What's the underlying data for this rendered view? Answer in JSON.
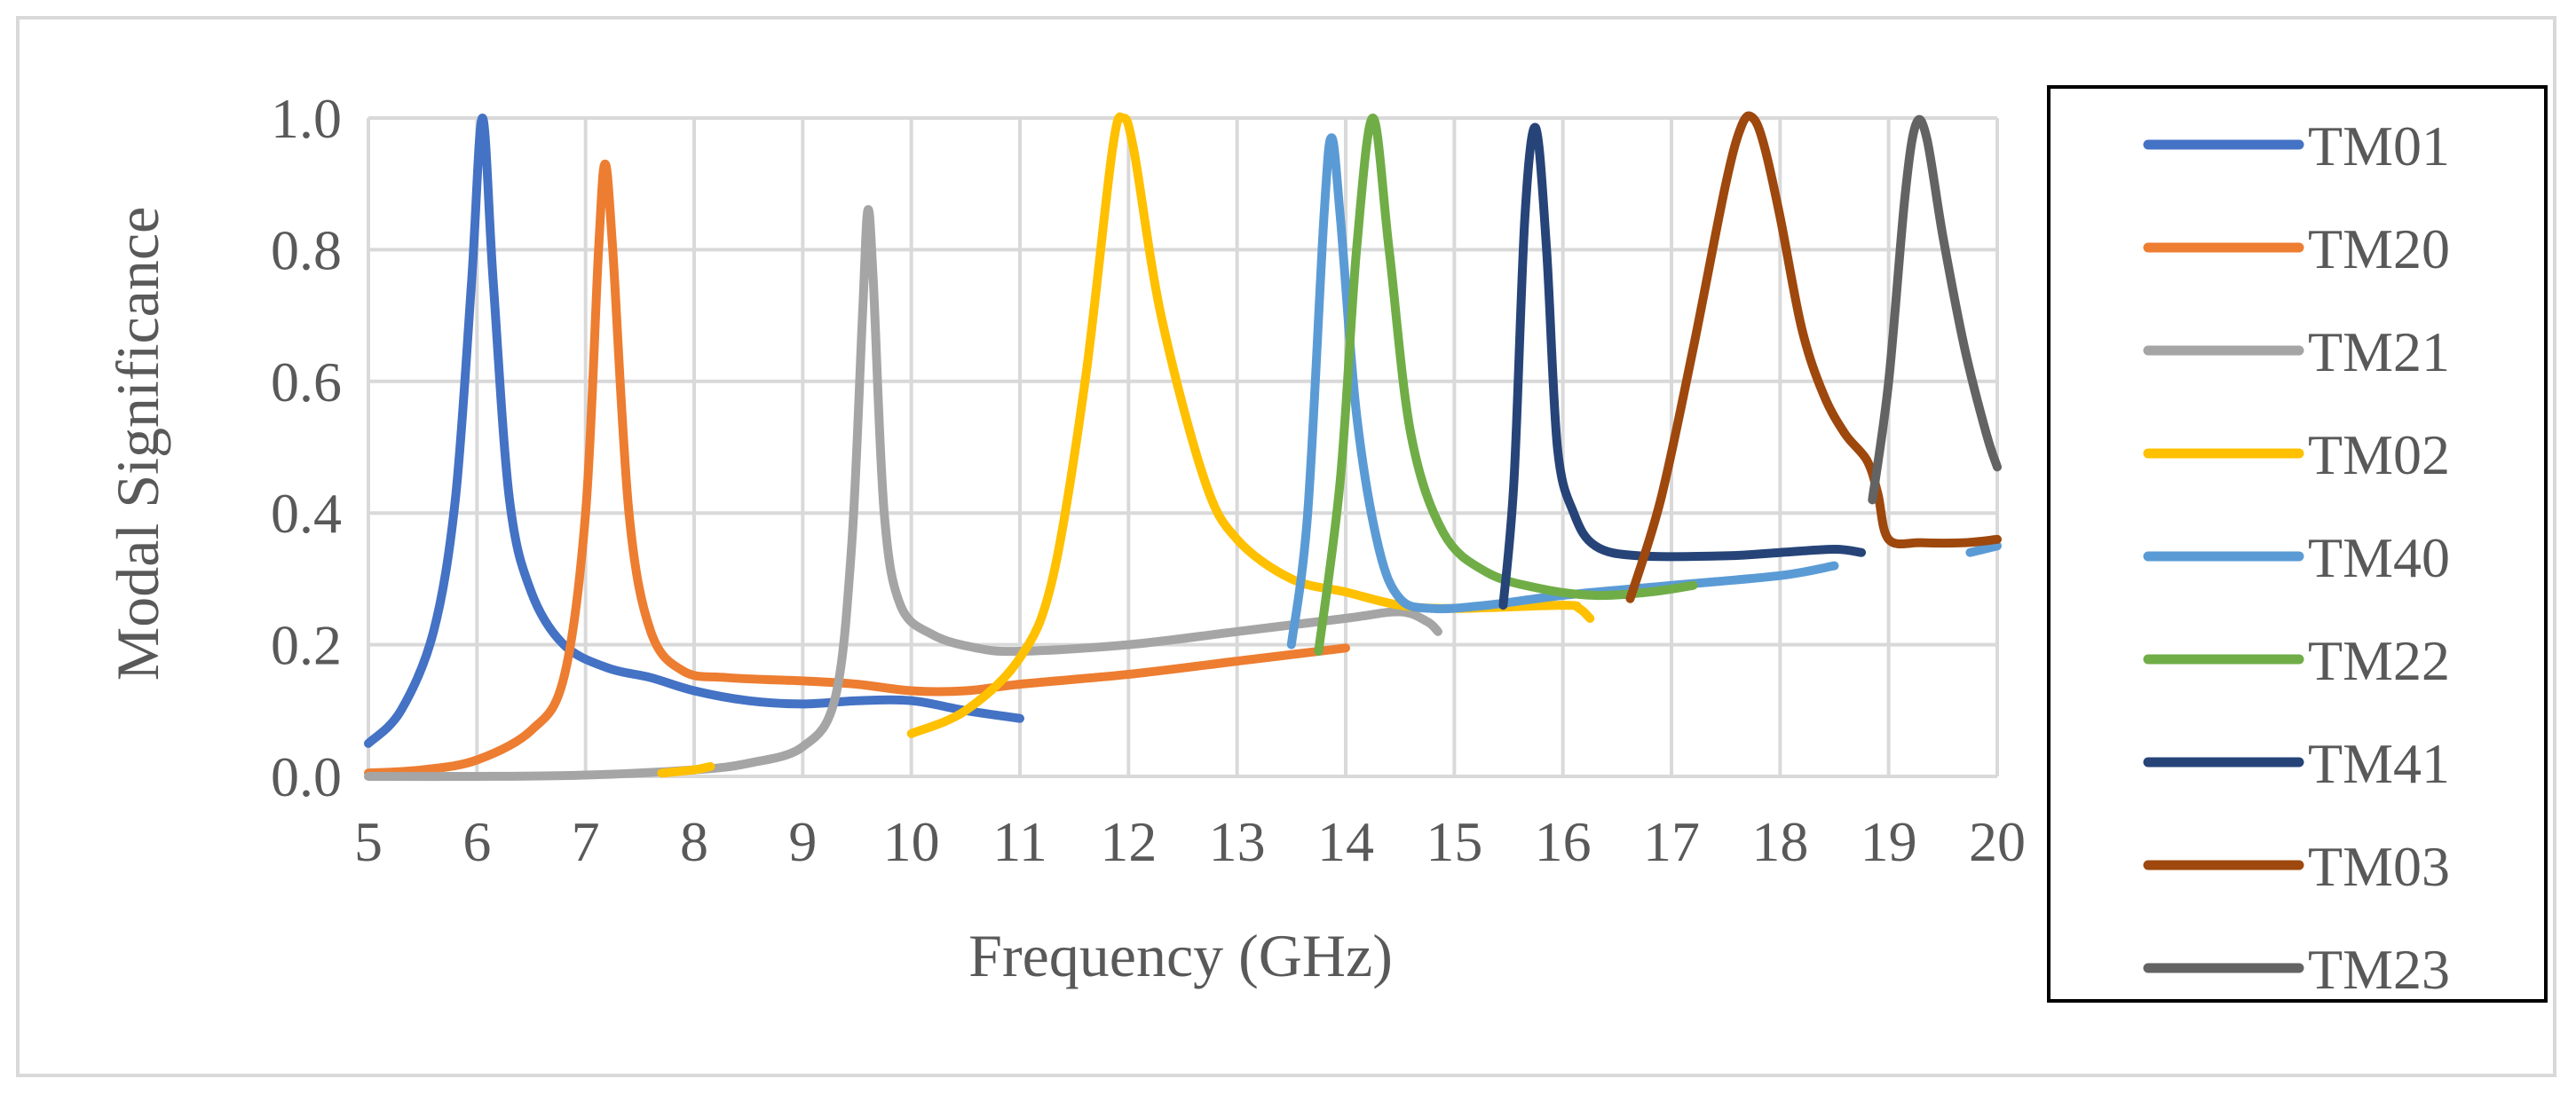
{
  "chart_data": {
    "type": "line",
    "title": "",
    "xlabel": "Frequency (GHz)",
    "ylabel": "Modal Significance",
    "xlim": [
      5,
      20
    ],
    "ylim": [
      0,
      1
    ],
    "grid": true,
    "legend_position": "right",
    "x_ticks": [
      "5",
      "6",
      "7",
      "8",
      "9",
      "10",
      "11",
      "12",
      "13",
      "14",
      "15",
      "16",
      "17",
      "18",
      "19",
      "20"
    ],
    "y_ticks": [
      "0.0",
      "0.2",
      "0.4",
      "0.6",
      "0.8",
      "1.0"
    ],
    "series": [
      {
        "name": "TM01",
        "color": "#4472C4",
        "points": [
          [
            5.0,
            0.05
          ],
          [
            5.3,
            0.1
          ],
          [
            5.6,
            0.22
          ],
          [
            5.8,
            0.42
          ],
          [
            5.95,
            0.75
          ],
          [
            6.05,
            1.0
          ],
          [
            6.15,
            0.75
          ],
          [
            6.3,
            0.42
          ],
          [
            6.5,
            0.28
          ],
          [
            6.8,
            0.2
          ],
          [
            7.2,
            0.165
          ],
          [
            7.6,
            0.15
          ],
          [
            8.0,
            0.13
          ],
          [
            8.5,
            0.115
          ],
          [
            9.0,
            0.11
          ],
          [
            9.5,
            0.115
          ],
          [
            10.0,
            0.115
          ],
          [
            10.5,
            0.1
          ],
          [
            11.0,
            0.088
          ]
        ]
      },
      {
        "name": "TM20",
        "color": "#ED7D31",
        "points": [
          [
            5.0,
            0.005
          ],
          [
            5.5,
            0.01
          ],
          [
            6.0,
            0.025
          ],
          [
            6.5,
            0.07
          ],
          [
            6.8,
            0.15
          ],
          [
            7.0,
            0.4
          ],
          [
            7.12,
            0.8
          ],
          [
            7.18,
            0.93
          ],
          [
            7.25,
            0.8
          ],
          [
            7.4,
            0.4
          ],
          [
            7.6,
            0.22
          ],
          [
            7.9,
            0.16
          ],
          [
            8.3,
            0.15
          ],
          [
            9.0,
            0.145
          ],
          [
            9.5,
            0.14
          ],
          [
            10.0,
            0.13
          ],
          [
            10.5,
            0.13
          ],
          [
            11.0,
            0.14
          ],
          [
            12.0,
            0.155
          ],
          [
            13.0,
            0.175
          ],
          [
            14.0,
            0.195
          ]
        ]
      },
      {
        "name": "TM21",
        "color": "#A5A5A5",
        "points": [
          [
            5.0,
            0.0
          ],
          [
            6.0,
            0.0
          ],
          [
            7.0,
            0.002
          ],
          [
            8.0,
            0.01
          ],
          [
            8.5,
            0.02
          ],
          [
            9.0,
            0.045
          ],
          [
            9.3,
            0.12
          ],
          [
            9.45,
            0.35
          ],
          [
            9.55,
            0.7
          ],
          [
            9.6,
            0.86
          ],
          [
            9.65,
            0.75
          ],
          [
            9.75,
            0.4
          ],
          [
            9.9,
            0.26
          ],
          [
            10.2,
            0.215
          ],
          [
            10.6,
            0.195
          ],
          [
            11.0,
            0.19
          ],
          [
            12.0,
            0.2
          ],
          [
            13.0,
            0.22
          ],
          [
            14.0,
            0.24
          ],
          [
            14.5,
            0.25
          ],
          [
            14.75,
            0.235
          ],
          [
            14.85,
            0.22
          ]
        ]
      },
      {
        "name": "TM02",
        "color": "#FFC000",
        "segments": [
          [
            [
              7.7,
              0.005
            ],
            [
              8.0,
              0.01
            ],
            [
              8.15,
              0.015
            ]
          ],
          [
            [
              10.0,
              0.065
            ],
            [
              10.5,
              0.1
            ],
            [
              11.0,
              0.18
            ],
            [
              11.3,
              0.3
            ],
            [
              11.6,
              0.6
            ],
            [
              11.85,
              0.95
            ],
            [
              11.95,
              1.0
            ],
            [
              12.05,
              0.95
            ],
            [
              12.3,
              0.7
            ],
            [
              12.7,
              0.45
            ],
            [
              13.0,
              0.36
            ],
            [
              13.5,
              0.3
            ],
            [
              14.0,
              0.28
            ],
            [
              14.5,
              0.26
            ],
            [
              15.0,
              0.255
            ],
            [
              16.0,
              0.26
            ],
            [
              16.15,
              0.255
            ],
            [
              16.25,
              0.24
            ]
          ]
        ]
      },
      {
        "name": "TM40",
        "color": "#5B9BD5",
        "segments": [
          [
            [
              13.5,
              0.2
            ],
            [
              13.65,
              0.4
            ],
            [
              13.8,
              0.85
            ],
            [
              13.87,
              0.97
            ],
            [
              13.95,
              0.85
            ],
            [
              14.1,
              0.55
            ],
            [
              14.3,
              0.35
            ],
            [
              14.5,
              0.27
            ],
            [
              14.8,
              0.255
            ],
            [
              15.3,
              0.26
            ],
            [
              16.0,
              0.275
            ],
            [
              17.0,
              0.29
            ],
            [
              18.0,
              0.305
            ],
            [
              18.5,
              0.32
            ]
          ],
          [
            [
              19.75,
              0.34
            ],
            [
              20.0,
              0.35
            ]
          ]
        ]
      },
      {
        "name": "TM22",
        "color": "#70AD47",
        "points": [
          [
            13.75,
            0.19
          ],
          [
            13.95,
            0.45
          ],
          [
            14.1,
            0.8
          ],
          [
            14.25,
            1.0
          ],
          [
            14.4,
            0.8
          ],
          [
            14.6,
            0.52
          ],
          [
            14.9,
            0.37
          ],
          [
            15.3,
            0.31
          ],
          [
            15.8,
            0.285
          ],
          [
            16.3,
            0.275
          ],
          [
            16.8,
            0.28
          ],
          [
            17.2,
            0.29
          ]
        ]
      },
      {
        "name": "TM41",
        "color": "#264478",
        "points": [
          [
            15.45,
            0.26
          ],
          [
            15.55,
            0.45
          ],
          [
            15.65,
            0.85
          ],
          [
            15.75,
            0.985
          ],
          [
            15.85,
            0.8
          ],
          [
            15.95,
            0.5
          ],
          [
            16.1,
            0.4
          ],
          [
            16.3,
            0.35
          ],
          [
            16.7,
            0.335
          ],
          [
            17.5,
            0.335
          ],
          [
            18.0,
            0.34
          ],
          [
            18.5,
            0.345
          ],
          [
            18.75,
            0.34
          ]
        ]
      },
      {
        "name": "TM03",
        "color": "#9E480E",
        "points": [
          [
            16.62,
            0.27
          ],
          [
            16.9,
            0.42
          ],
          [
            17.2,
            0.65
          ],
          [
            17.5,
            0.9
          ],
          [
            17.65,
            0.99
          ],
          [
            17.75,
            1.0
          ],
          [
            17.85,
            0.96
          ],
          [
            18.0,
            0.85
          ],
          [
            18.2,
            0.68
          ],
          [
            18.4,
            0.58
          ],
          [
            18.6,
            0.52
          ],
          [
            18.8,
            0.48
          ],
          [
            18.9,
            0.43
          ],
          [
            19.0,
            0.36
          ],
          [
            19.3,
            0.355
          ],
          [
            19.7,
            0.355
          ],
          [
            20.0,
            0.36
          ]
        ]
      },
      {
        "name": "TM23",
        "color": "#636363",
        "points": [
          [
            18.85,
            0.42
          ],
          [
            19.0,
            0.6
          ],
          [
            19.15,
            0.88
          ],
          [
            19.25,
            0.99
          ],
          [
            19.35,
            0.97
          ],
          [
            19.5,
            0.82
          ],
          [
            19.7,
            0.65
          ],
          [
            19.9,
            0.52
          ],
          [
            20.0,
            0.47
          ]
        ]
      }
    ]
  }
}
